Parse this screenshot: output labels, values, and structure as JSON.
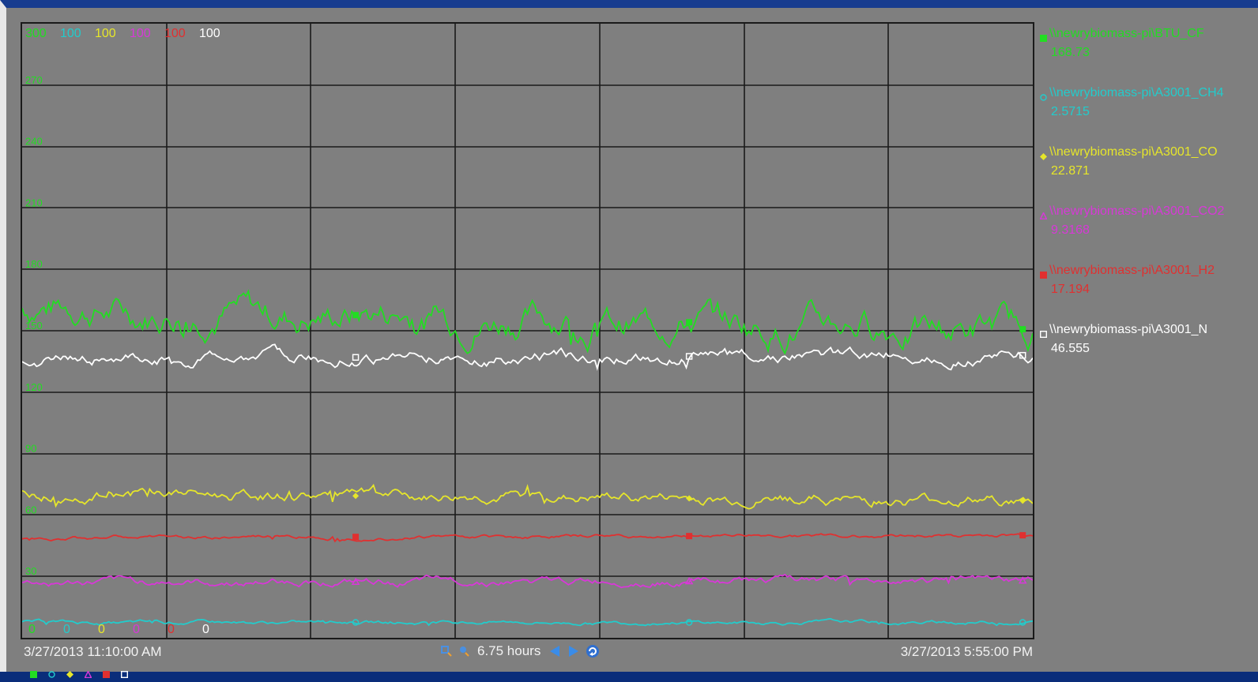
{
  "scales": [
    {
      "max": "300",
      "min": "0",
      "color": "#22dd22"
    },
    {
      "max": "100",
      "min": "0",
      "color": "#22cccc"
    },
    {
      "max": "100",
      "min": "0",
      "color": "#e6e62a"
    },
    {
      "max": "100",
      "min": "0",
      "color": "#d838d8"
    },
    {
      "max": "100",
      "min": "0",
      "color": "#e03030"
    },
    {
      "max": "100",
      "min": "0",
      "color": "#ffffff"
    }
  ],
  "y_tick_labels": [
    "300",
    "270",
    "240",
    "210",
    "180",
    "150",
    "120",
    "90",
    "60",
    "30"
  ],
  "chart_data": {
    "type": "line",
    "time_start": "3/27/2013 11:10:00 AM",
    "time_end": "3/27/2013 5:55:00 PM",
    "duration": "6.75 hours",
    "grid": true,
    "series": [
      {
        "name": "\\\\newrybiomass-pi\\BTU_CF",
        "value": "168.73",
        "color": "#22dd22",
        "marker": "filled-square",
        "scale_max": 300,
        "level": 0.537,
        "variance": 0.035,
        "trend": -0.035
      },
      {
        "name": "\\\\newrybiomass-pi\\A3001_CH4",
        "value": "2.5715",
        "color": "#22cccc",
        "marker": "open-circle",
        "scale_max": 100,
        "level": 0.025,
        "variance": 0.004,
        "trend": 0.0
      },
      {
        "name": "\\\\newrybiomass-pi\\A3001_CO",
        "value": "22.871",
        "color": "#e6e62a",
        "marker": "filled-diamond",
        "scale_max": 100,
        "level": 0.235,
        "variance": 0.012,
        "trend": -0.012
      },
      {
        "name": "\\\\newrybiomass-pi\\A3001_CO2",
        "value": "9.3168",
        "color": "#d838d8",
        "marker": "open-triangle",
        "scale_max": 100,
        "level": 0.09,
        "variance": 0.008,
        "trend": 0.003
      },
      {
        "name": "\\\\newrybiomass-pi\\A3001_H2",
        "value": "17.194",
        "color": "#e03030",
        "marker": "filled-square",
        "scale_max": 100,
        "level": 0.163,
        "variance": 0.004,
        "trend": 0.004
      },
      {
        "name": "\\\\newrybiomass-pi\\A3001_N",
        "value": "46.555",
        "color": "#ffffff",
        "marker": "open-square",
        "scale_max": 100,
        "level": 0.455,
        "variance": 0.013,
        "trend": 0.005
      }
    ]
  }
}
